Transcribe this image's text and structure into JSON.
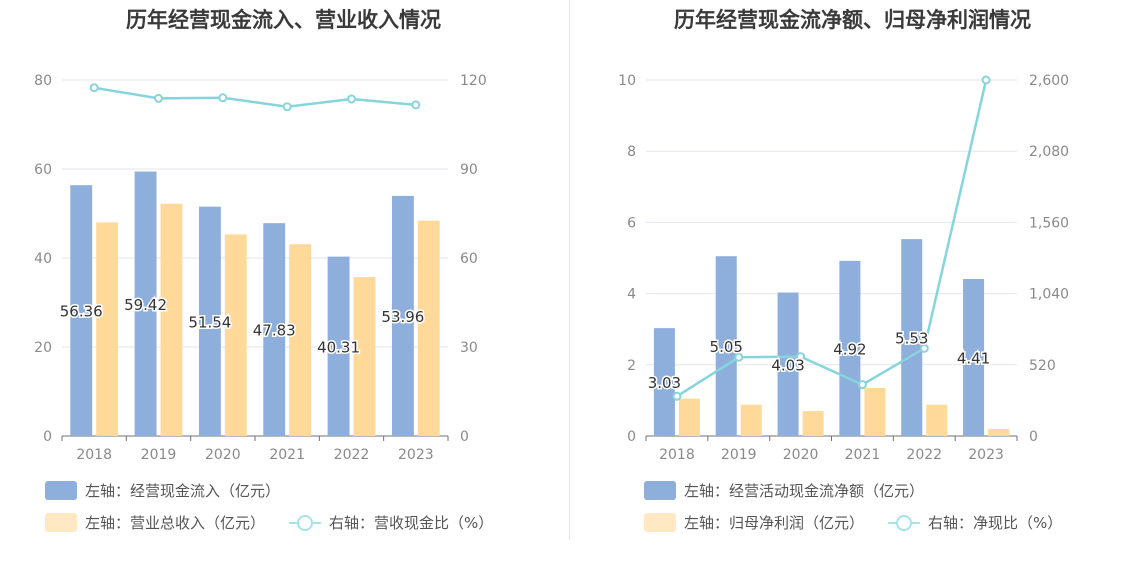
{
  "colors": {
    "bar_primary": "#8eaedb",
    "bar_secondary": "#ffd999",
    "legend_secondary": "#ffe8c2",
    "line": "#86d4dc",
    "legend_line": "#a4e3ea",
    "grid": "#e3e6ee",
    "axis_text": "#8a8a8a"
  },
  "chart_data": [
    {
      "type": "bar",
      "title": "历年经营现金流入、营业收入情况",
      "categories": [
        "2018",
        "2019",
        "2020",
        "2021",
        "2022",
        "2023"
      ],
      "series": [
        {
          "name": "左轴：经营现金流入（亿元）",
          "axis": "left",
          "type": "bar",
          "values": [
            56.36,
            59.42,
            51.54,
            47.83,
            40.31,
            53.96
          ],
          "labels": [
            "56.36",
            "59.42",
            "51.54",
            "47.83",
            "40.31",
            "53.96"
          ]
        },
        {
          "name": "左轴：营业总收入（亿元）",
          "axis": "left",
          "type": "bar",
          "values": [
            48.0,
            52.2,
            45.3,
            43.1,
            35.7,
            48.4
          ]
        },
        {
          "name": "右轴：营收现金比（%）",
          "axis": "right",
          "type": "line",
          "values": [
            117.4,
            113.8,
            114.0,
            111.0,
            113.6,
            111.6
          ]
        }
      ],
      "y_left": {
        "min": 0,
        "max": 80,
        "ticks": [
          "0",
          "20",
          "40",
          "60",
          "80"
        ]
      },
      "y_right": {
        "min": 0,
        "max": 120,
        "ticks": [
          "0",
          "30",
          "60",
          "90",
          "120"
        ]
      },
      "grid": true,
      "legend_position": "bottom-left"
    },
    {
      "type": "bar",
      "title": "历年经营现金流净额、归母净利润情况",
      "categories": [
        "2018",
        "2019",
        "2020",
        "2021",
        "2022",
        "2023"
      ],
      "series": [
        {
          "name": "左轴：经营活动现金流净额（亿元）",
          "axis": "left",
          "type": "bar",
          "values": [
            3.03,
            5.05,
            4.03,
            4.92,
            5.53,
            4.41
          ],
          "labels": [
            "3.03",
            "5.05",
            "4.03",
            "4.92",
            "5.53",
            "4.41"
          ]
        },
        {
          "name": "左轴：归母净利润（亿元）",
          "axis": "left",
          "type": "bar",
          "values": [
            1.05,
            0.88,
            0.7,
            1.35,
            0.88,
            0.2
          ]
        },
        {
          "name": "右轴：净现比（%）",
          "axis": "right",
          "type": "line",
          "values": [
            290,
            575,
            580,
            375,
            640,
            2600
          ]
        }
      ],
      "y_left": {
        "min": 0,
        "max": 10,
        "ticks": [
          "0",
          "2",
          "4",
          "6",
          "8",
          "10"
        ]
      },
      "y_right": {
        "min": 0,
        "max": 2600,
        "ticks": [
          "0",
          "520",
          "1,040",
          "1,560",
          "2,080",
          "2,600"
        ]
      },
      "grid": true,
      "legend_position": "bottom-left"
    }
  ]
}
